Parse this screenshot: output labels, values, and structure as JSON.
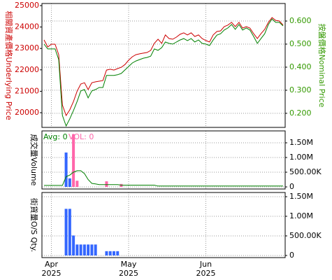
{
  "chart_data": [
    {
      "type": "line",
      "y_label": "相關資產價格Underlying Price",
      "y_label_color": "#cc0000",
      "y2_label": "按盤價格Nominal Price",
      "y2_label_color": "#339900",
      "ylim": [
        19314,
        25098
      ],
      "yticks": [
        20000,
        21000,
        22000,
        23000,
        24000,
        25000
      ],
      "y2lim": [
        0.139,
        0.676
      ],
      "y2ticks": [
        {
          "value": 0.2,
          "label": "0.200"
        },
        {
          "value": 0.3,
          "label": "0.300"
        },
        {
          "value": 0.4,
          "label": "0.400"
        },
        {
          "value": 0.5,
          "label": "0.500"
        },
        {
          "value": 0.6,
          "label": "0.600"
        }
      ],
      "grid": true,
      "series": [
        {
          "color": "#cc0000",
          "values": [
            23400,
            23070,
            23200,
            23200,
            22710,
            20360,
            19870,
            20130,
            20520,
            21010,
            21340,
            21400,
            21080,
            21400,
            21440,
            21470,
            21500,
            21990,
            22030,
            21990,
            22060,
            22120,
            22250,
            22450,
            22610,
            22710,
            22750,
            22780,
            22810,
            22910,
            23240,
            23430,
            23240,
            23630,
            23460,
            23430,
            23530,
            23660,
            23730,
            23630,
            23730,
            23560,
            23630,
            23460,
            23370,
            23300,
            23630,
            23790,
            23820,
            24020,
            24090,
            24220,
            24020,
            24220,
            23950,
            24020,
            23950,
            23690,
            23460,
            23690,
            23890,
            24220,
            24440,
            24310,
            24280,
            24090
          ]
        },
        {
          "color": "#008000",
          "axis": "y2",
          "values": [
            0.5,
            0.479,
            0.479,
            0.479,
            0.433,
            0.191,
            0.145,
            0.176,
            0.212,
            0.252,
            0.297,
            0.303,
            0.267,
            0.297,
            0.303,
            0.312,
            0.312,
            0.364,
            0.364,
            0.364,
            0.367,
            0.373,
            0.388,
            0.403,
            0.418,
            0.427,
            0.433,
            0.439,
            0.442,
            0.448,
            0.479,
            0.473,
            0.485,
            0.509,
            0.503,
            0.5,
            0.509,
            0.518,
            0.524,
            0.515,
            0.524,
            0.509,
            0.518,
            0.503,
            0.5,
            0.494,
            0.518,
            0.539,
            0.545,
            0.561,
            0.57,
            0.585,
            0.564,
            0.585,
            0.561,
            0.57,
            0.561,
            0.533,
            0.503,
            0.524,
            0.545,
            0.585,
            0.609,
            0.594,
            0.594,
            0.579
          ]
        }
      ]
    },
    {
      "type": "bar",
      "y_label": "成交量Volume",
      "legend": [
        {
          "text": "Avg: 0",
          "color": "#008000"
        },
        {
          "text": "VOL: 0",
          "color": "#ff66aa"
        }
      ],
      "ylim": [
        -71000,
        1905000
      ],
      "yticks": [
        {
          "value": 0,
          "label": "0"
        },
        {
          "value": 500000,
          "label": "500.00K"
        },
        {
          "value": 1000000,
          "label": "1.00M"
        },
        {
          "value": 1500000,
          "label": "1.50M"
        }
      ],
      "grid": true,
      "series": [
        {
          "color": "#3366ff",
          "values": [
            0,
            0,
            0,
            0,
            0,
            0,
            1170000,
            290000,
            0,
            0,
            0,
            0,
            0,
            0,
            0,
            0,
            0,
            0,
            0,
            0,
            0,
            0,
            0,
            0,
            0,
            0,
            0,
            0,
            0,
            0,
            0,
            0,
            0,
            0,
            0,
            0,
            0,
            0,
            0,
            0,
            0,
            0,
            0,
            0,
            0,
            0,
            0,
            0,
            0,
            0,
            0,
            0,
            0,
            0,
            0,
            0,
            0,
            0,
            0,
            0,
            0,
            0,
            0,
            0,
            0,
            0
          ]
        },
        {
          "color": "#ff66aa",
          "values": [
            0,
            0,
            0,
            0,
            0,
            0,
            0,
            0,
            1790000,
            210000,
            0,
            0,
            0,
            0,
            0,
            0,
            0,
            190000,
            0,
            0,
            0,
            100000,
            0,
            0,
            0,
            0,
            0,
            0,
            0,
            0,
            0,
            0,
            0,
            0,
            0,
            0,
            0,
            0,
            0,
            0,
            0,
            0,
            0,
            0,
            0,
            0,
            0,
            0,
            0,
            0,
            0,
            0,
            0,
            0,
            0,
            0,
            0,
            0,
            0,
            0,
            0,
            0,
            0,
            0,
            0,
            0
          ]
        },
        {
          "color": "#008000",
          "line": true,
          "values": [
            50000,
            50000,
            50000,
            50000,
            50000,
            50000,
            350000,
            400000,
            500000,
            550000,
            550000,
            450000,
            250000,
            120000,
            100000,
            80000,
            80000,
            80000,
            80000,
            80000,
            80000,
            60000,
            60000,
            60000,
            60000,
            60000,
            60000,
            60000,
            60000,
            60000,
            60000,
            30000,
            30000,
            30000,
            30000,
            30000,
            30000,
            30000,
            30000,
            30000,
            30000,
            30000,
            30000,
            30000,
            30000,
            30000,
            30000,
            30000,
            30000,
            30000,
            30000,
            30000,
            30000,
            30000,
            30000,
            30000,
            30000,
            30000,
            30000,
            30000,
            30000,
            30000,
            30000,
            30000,
            30000,
            30000
          ]
        }
      ]
    },
    {
      "type": "bar",
      "y_label": "街貨量O/S Qty.",
      "ylim": [
        -54000,
        1607000
      ],
      "yticks": [
        {
          "value": 0,
          "label": "0"
        },
        {
          "value": 500000,
          "label": "500.00K"
        },
        {
          "value": 1000000,
          "label": "1.00M"
        },
        {
          "value": 1500000,
          "label": "1.50M"
        }
      ],
      "grid": true,
      "categories": [
        null,
        null,
        "Apr",
        null,
        null,
        null,
        null,
        null,
        null,
        null,
        null,
        null,
        null,
        null,
        null,
        null,
        null,
        null,
        null,
        null,
        null,
        null,
        null,
        "May",
        null,
        null,
        null,
        null,
        null,
        null,
        null,
        null,
        null,
        null,
        null,
        null,
        null,
        null,
        null,
        null,
        null,
        null,
        null,
        null,
        "Jun",
        null,
        null,
        null,
        null,
        null,
        null,
        null,
        null,
        null,
        null,
        null,
        null,
        null,
        null,
        null,
        null,
        null,
        null,
        null,
        null,
        null
      ],
      "category_years": [
        null,
        null,
        "2025",
        null,
        null,
        null,
        null,
        null,
        null,
        null,
        null,
        null,
        null,
        null,
        null,
        null,
        null,
        null,
        null,
        null,
        null,
        null,
        null,
        "2025",
        null,
        null,
        null,
        null,
        null,
        null,
        null,
        null,
        null,
        null,
        null,
        null,
        null,
        null,
        null,
        null,
        null,
        null,
        null,
        null,
        "2025",
        null,
        null,
        null,
        null,
        null,
        null,
        null,
        null,
        null,
        null,
        null,
        null,
        null,
        null,
        null,
        null,
        null,
        null,
        null,
        null,
        null
      ],
      "series": [
        {
          "color": "#3366ff",
          "values": [
            0,
            0,
            0,
            0,
            0,
            0,
            1190000,
            1190000,
            510000,
            280000,
            280000,
            280000,
            280000,
            280000,
            280000,
            0,
            0,
            110000,
            110000,
            110000,
            110000,
            0,
            0,
            0,
            0,
            0,
            0,
            0,
            0,
            0,
            0,
            0,
            0,
            0,
            0,
            0,
            0,
            0,
            0,
            0,
            0,
            0,
            0,
            0,
            0,
            0,
            0,
            0,
            0,
            0,
            0,
            0,
            0,
            0,
            0,
            0,
            0,
            0,
            0,
            0,
            0,
            0,
            0,
            0,
            0,
            0
          ]
        }
      ]
    }
  ]
}
